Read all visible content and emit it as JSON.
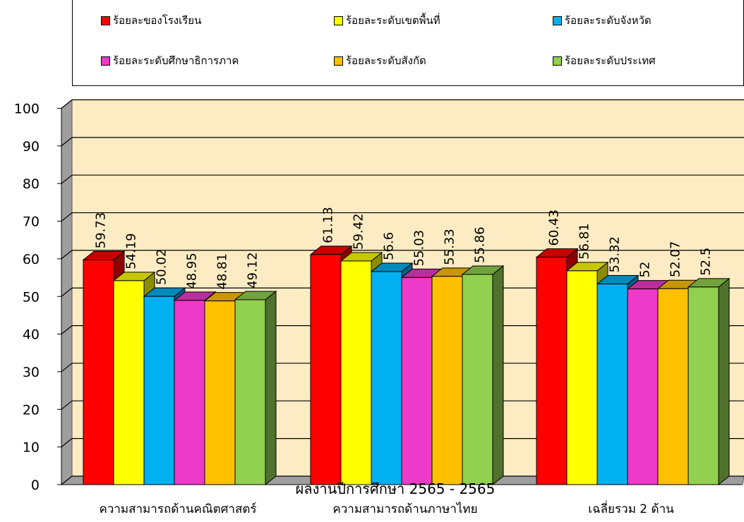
{
  "chart_data": {
    "type": "bar",
    "categories": [
      "ความสามารถด้านคณิตศาสตร์",
      "ความสามารถด้านภาษาไทย",
      "เฉลี่ยรวม 2 ด้าน"
    ],
    "series": [
      {
        "name": "ร้อยละของโรงเรียน",
        "color": "#ff0000",
        "values": [
          59.73,
          61.13,
          60.43
        ],
        "labels": [
          "59.73",
          "61.13",
          "60.43"
        ]
      },
      {
        "name": "ร้อยละระดับเขตพื้นที่",
        "color": "#ffff00",
        "values": [
          54.19,
          59.42,
          56.81
        ],
        "labels": [
          "54.19",
          "59.42",
          "56.81"
        ]
      },
      {
        "name": "ร้อยละระดับจังหวัด",
        "color": "#00b0f0",
        "values": [
          50.02,
          56.6,
          53.32
        ],
        "labels": [
          "50.02",
          "56.6",
          "53.32"
        ]
      },
      {
        "name": "ร้อยละระดับศึกษาธิการภาค",
        "color": "#ee3ac8",
        "values": [
          48.95,
          55.03,
          52
        ],
        "labels": [
          "48.95",
          "55.03",
          "52"
        ]
      },
      {
        "name": "ร้อยละระดับสังกัด",
        "color": "#ffc000",
        "values": [
          48.81,
          55.33,
          52.07
        ],
        "labels": [
          "48.81",
          "55.33",
          "52.07"
        ]
      },
      {
        "name": "ร้อยละระดับประเทศ",
        "color": "#92d050",
        "values": [
          49.12,
          55.86,
          52.5
        ],
        "labels": [
          "49.12",
          "55.86",
          "52.5"
        ]
      }
    ],
    "yticks": [
      "0",
      "10",
      "20",
      "30",
      "40",
      "50",
      "60",
      "70",
      "80",
      "90",
      "100"
    ],
    "ylim": [
      0,
      100
    ],
    "grid": true,
    "legend_position": "top",
    "plot_background": "#fdebc3",
    "overlay_text": "ผลงานปีการศึกษา 2565 - 2565"
  }
}
